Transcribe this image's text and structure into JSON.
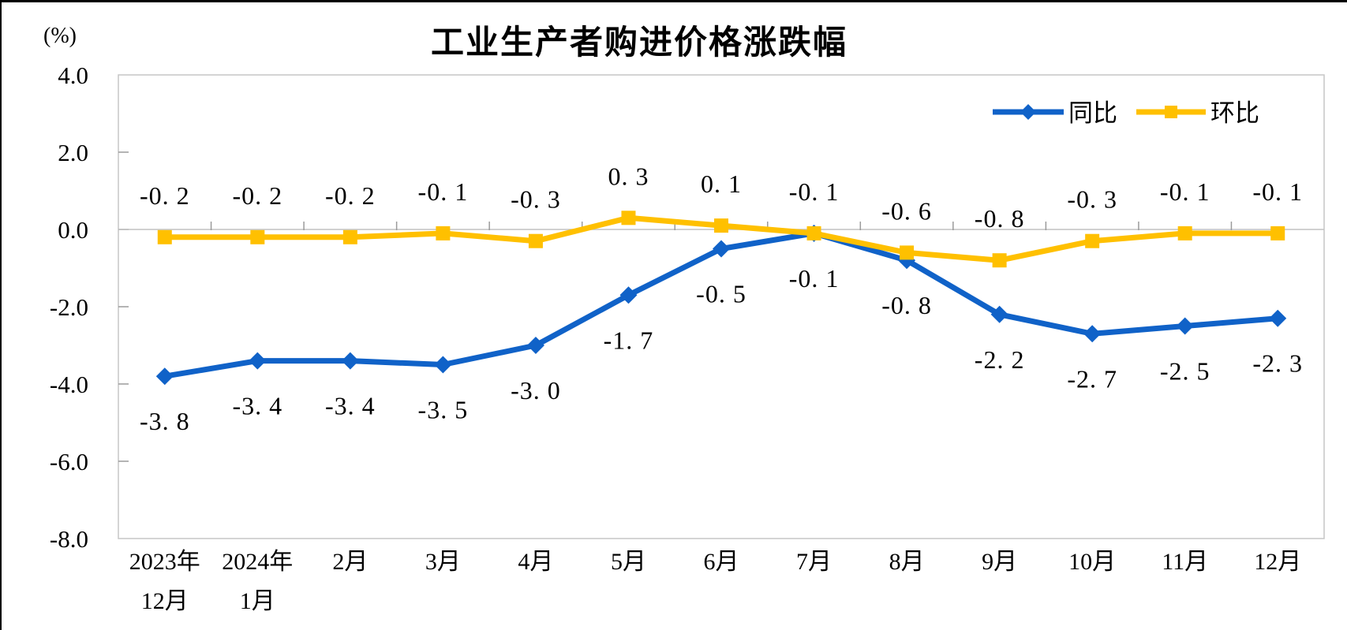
{
  "page": {
    "title": "工业生产者购进价格涨跌幅",
    "unit_label": "(%)"
  },
  "chart_data": {
    "type": "line",
    "title": "工业生产者购进价格涨跌幅",
    "unit": "(%)",
    "categories": [
      [
        "2023年",
        "12月"
      ],
      [
        "2024年",
        "1月"
      ],
      [
        "2月"
      ],
      [
        "3月"
      ],
      [
        "4月"
      ],
      [
        "5月"
      ],
      [
        "6月"
      ],
      [
        "7月"
      ],
      [
        "8月"
      ],
      [
        "9月"
      ],
      [
        "10月"
      ],
      [
        "11月"
      ],
      [
        "12月"
      ]
    ],
    "series": [
      {
        "name": "同比",
        "color": "#1062C8",
        "marker": "diamond",
        "label_side": "below",
        "values": [
          -3.8,
          -3.4,
          -3.4,
          -3.5,
          -3.0,
          -1.7,
          -0.5,
          -0.1,
          -0.8,
          -2.2,
          -2.7,
          -2.5,
          -2.3
        ]
      },
      {
        "name": "环比",
        "color": "#FFC000",
        "marker": "square",
        "label_side": "above",
        "values": [
          -0.2,
          -0.2,
          -0.2,
          -0.1,
          -0.3,
          0.3,
          0.1,
          -0.1,
          -0.6,
          -0.8,
          -0.3,
          -0.1,
          -0.1
        ]
      }
    ],
    "y_axis": {
      "min": -8.0,
      "max": 4.0,
      "step": 2.0,
      "tick_labels": [
        "4.0",
        "2.0",
        "0.0",
        "-2.0",
        "-4.0",
        "-6.0",
        "-8.0"
      ]
    },
    "legend_position": "top-right",
    "grid": false,
    "data_labels_shown": true
  }
}
